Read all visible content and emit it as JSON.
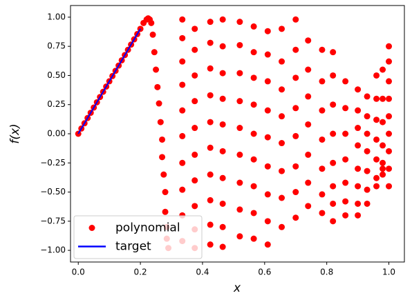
{
  "chart_data": {
    "type": "scatter",
    "xlabel": "x",
    "ylabel": "f(x)",
    "xlim": [
      -0.025,
      1.05
    ],
    "ylim": [
      -1.1,
      1.1
    ],
    "xticks": [
      {
        "value": 0,
        "label": "0.0"
      },
      {
        "value": 0.2,
        "label": "0.2"
      },
      {
        "value": 0.4,
        "label": "0.4"
      },
      {
        "value": 0.6,
        "label": "0.6"
      },
      {
        "value": 0.8,
        "label": "0.8"
      },
      {
        "value": 1,
        "label": "1.0"
      }
    ],
    "yticks": [
      {
        "value": -1,
        "label": "−1.00"
      },
      {
        "value": -0.75,
        "label": "−0.75"
      },
      {
        "value": -0.5,
        "label": "−0.50"
      },
      {
        "value": -0.25,
        "label": "−0.25"
      },
      {
        "value": 0,
        "label": "0.00"
      },
      {
        "value": 0.25,
        "label": "0.25"
      },
      {
        "value": 0.5,
        "label": "0.50"
      },
      {
        "value": 0.75,
        "label": "0.75"
      },
      {
        "value": 1,
        "label": "1.00"
      }
    ],
    "legend": "lower left",
    "series": [
      {
        "name": "polynomial",
        "kind": "points",
        "color": "#ff0000",
        "x": [
          0,
          0.01,
          0.02,
          0.03,
          0.04,
          0.05,
          0.06,
          0.07,
          0.08,
          0.09,
          0.1,
          0.11,
          0.12,
          0.13,
          0.14,
          0.15,
          0.16,
          0.17,
          0.18,
          0.19,
          0.2,
          0.21,
          0.22,
          0.225,
          0.23,
          0.235,
          0.24,
          0.245,
          0.25,
          0.255,
          0.26,
          0.265,
          0.27,
          0.27,
          0.275,
          0.28,
          0.28,
          0.285,
          0.285,
          0.29,
          0.335,
          0.335,
          0.335,
          0.335,
          0.335,
          0.335,
          0.335,
          0.335,
          0.335,
          0.335,
          0.375,
          0.375,
          0.375,
          0.375,
          0.375,
          0.375,
          0.375,
          0.375,
          0.375,
          0.375,
          0.425,
          0.425,
          0.425,
          0.425,
          0.425,
          0.425,
          0.425,
          0.425,
          0.425,
          0.425,
          0.465,
          0.465,
          0.465,
          0.465,
          0.465,
          0.465,
          0.465,
          0.465,
          0.465,
          0.465,
          0.52,
          0.52,
          0.52,
          0.52,
          0.52,
          0.52,
          0.52,
          0.52,
          0.52,
          0.565,
          0.565,
          0.565,
          0.565,
          0.565,
          0.565,
          0.565,
          0.565,
          0.565,
          0.61,
          0.61,
          0.61,
          0.61,
          0.61,
          0.61,
          0.61,
          0.61,
          0.61,
          0.655,
          0.655,
          0.655,
          0.655,
          0.655,
          0.655,
          0.655,
          0.655,
          0.7,
          0.7,
          0.7,
          0.7,
          0.7,
          0.7,
          0.7,
          0.7,
          0.74,
          0.74,
          0.74,
          0.74,
          0.74,
          0.74,
          0.74,
          0.785,
          0.785,
          0.785,
          0.785,
          0.785,
          0.785,
          0.785,
          0.82,
          0.82,
          0.82,
          0.82,
          0.82,
          0.82,
          0.82,
          0.82,
          0.86,
          0.86,
          0.86,
          0.86,
          0.86,
          0.86,
          0.86,
          0.9,
          0.9,
          0.9,
          0.9,
          0.9,
          0.9,
          0.9,
          0.9,
          0.93,
          0.93,
          0.93,
          0.93,
          0.93,
          0.93,
          0.93,
          0.96,
          0.96,
          0.96,
          0.96,
          0.96,
          0.96,
          0.96,
          0.98,
          0.98,
          0.98,
          0.98,
          0.98,
          0.98,
          0.98,
          1,
          1,
          1,
          1,
          1,
          1,
          1,
          1,
          1
        ],
        "values": [
          0,
          0.045,
          0.09,
          0.135,
          0.18,
          0.225,
          0.27,
          0.315,
          0.36,
          0.405,
          0.45,
          0.495,
          0.54,
          0.585,
          0.63,
          0.675,
          0.72,
          0.765,
          0.81,
          0.855,
          0.9,
          0.95,
          0.98,
          0.99,
          0.98,
          0.95,
          0.85,
          0.7,
          0.55,
          0.4,
          0.26,
          0.1,
          -0.05,
          -0.2,
          -0.35,
          -0.5,
          -0.67,
          -0.8,
          -0.9,
          -0.98,
          0.98,
          0.82,
          0.62,
          0.42,
          0.2,
          -0.02,
          -0.25,
          -0.48,
          -0.7,
          -0.92,
          0.9,
          0.72,
          0.5,
          0.28,
          0.05,
          -0.18,
          -0.4,
          -0.62,
          -0.82,
          -0.98,
          0.96,
          0.78,
          0.56,
          0.33,
          0.1,
          -0.12,
          -0.35,
          -0.57,
          -0.78,
          -0.95,
          0.98,
          0.75,
          0.52,
          0.3,
          0.08,
          -0.15,
          -0.38,
          -0.6,
          -0.8,
          -0.97,
          0.96,
          0.76,
          0.52,
          0.28,
          0.05,
          -0.18,
          -0.42,
          -0.65,
          -0.88,
          0.92,
          0.7,
          0.48,
          0.25,
          0,
          -0.22,
          -0.45,
          -0.68,
          -0.9,
          0.88,
          0.68,
          0.45,
          0.2,
          -0.03,
          -0.28,
          -0.52,
          -0.75,
          -0.95,
          0.9,
          0.62,
          0.38,
          0.15,
          -0.08,
          -0.32,
          -0.55,
          -0.8,
          0.98,
          0.72,
          0.48,
          0.22,
          -0.02,
          -0.28,
          -0.5,
          -0.72,
          0.8,
          0.55,
          0.32,
          0.08,
          -0.18,
          -0.42,
          -0.62,
          0.72,
          0.45,
          0.2,
          -0.05,
          -0.3,
          -0.52,
          -0.68,
          0.7,
          0.5,
          0.25,
          0,
          -0.25,
          -0.45,
          -0.6,
          -0.75,
          0.45,
          0.22,
          0,
          -0.22,
          -0.42,
          -0.58,
          -0.7,
          0.38,
          0.2,
          0.05,
          -0.1,
          -0.3,
          -0.45,
          -0.6,
          -0.7,
          0.32,
          0.15,
          0,
          -0.15,
          -0.32,
          -0.48,
          -0.6,
          0.5,
          0.3,
          0.12,
          -0.05,
          -0.22,
          -0.38,
          -0.45,
          0.55,
          0.3,
          0.1,
          -0.1,
          -0.25,
          -0.3,
          -0.35,
          0.75,
          0.62,
          0.45,
          0.3,
          0.15,
          0,
          -0.15,
          -0.3,
          -0.45
        ]
      },
      {
        "name": "target",
        "kind": "line",
        "color": "#0000ff",
        "x": [
          0,
          0.2
        ],
        "values": [
          0,
          0.9
        ]
      }
    ]
  }
}
